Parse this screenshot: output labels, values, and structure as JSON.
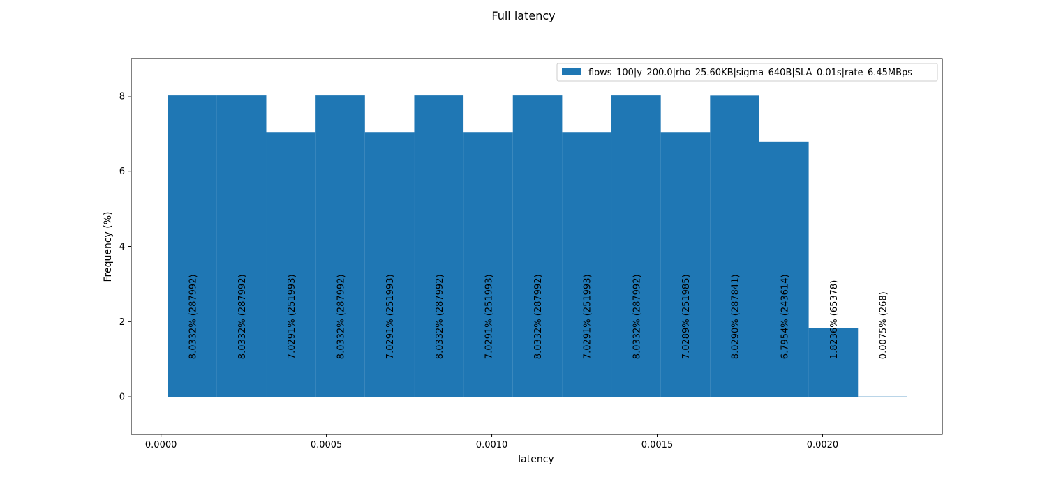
{
  "chart_data": {
    "type": "bar",
    "title": "Full latency",
    "xlabel": "latency",
    "ylabel": "Frequency (%)",
    "xlim": [
      -9e-05,
      0.002362
    ],
    "ylim": [
      -1.0,
      9.0
    ],
    "x_ticks": [
      0.0,
      0.0005,
      0.001,
      0.0015,
      0.002
    ],
    "x_tick_labels": [
      "0.0000",
      "0.0005",
      "0.0010",
      "0.0015",
      "0.0020"
    ],
    "y_ticks": [
      0,
      2,
      4,
      6,
      8
    ],
    "y_tick_labels": [
      "0",
      "2",
      "4",
      "6",
      "8"
    ],
    "grid": false,
    "legend_position": "top-right",
    "bar_color": "#1f77b4",
    "bin_edges": [
      2.02e-05,
      0.0001693,
      0.0003183,
      0.0004674,
      0.0006165,
      0.0007656,
      0.0009146,
      0.0010637,
      0.0012128,
      0.0013618,
      0.0015109,
      0.00166,
      0.0018091,
      0.0019581,
      0.0021072,
      0.0022563
    ],
    "series": [
      {
        "name": "flows_100|y_200.0|rho_25.60KB|sigma_640B|SLA_0.01s|rate_6.45MBps",
        "values": [
          8.0332,
          8.0332,
          7.0291,
          8.0332,
          7.0291,
          8.0332,
          7.0291,
          8.0332,
          7.0291,
          8.0332,
          7.0289,
          8.029,
          6.7954,
          1.8236,
          0.0075
        ],
        "labels": [
          "8.0332% (287992)",
          "8.0332% (287992)",
          "7.0291% (251993)",
          "8.0332% (287992)",
          "7.0291% (251993)",
          "8.0332% (287992)",
          "7.0291% (251993)",
          "8.0332% (287992)",
          "7.0291% (251993)",
          "8.0332% (287992)",
          "7.0289% (251985)",
          "8.0290% (287841)",
          "6.7954% (243614)",
          "1.8236% (65378)",
          "0.0075% (268)"
        ]
      }
    ]
  }
}
